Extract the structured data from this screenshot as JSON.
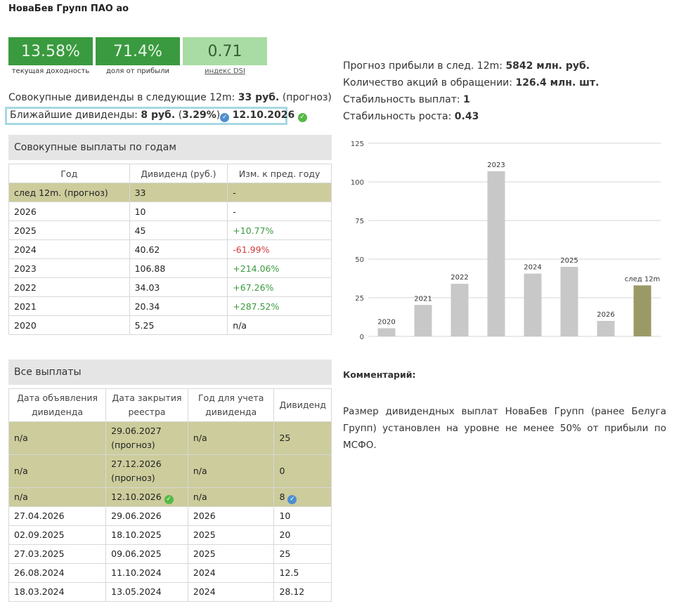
{
  "title": "НоваБев Групп ПАО ао",
  "metrics": [
    {
      "value": "13.58%",
      "label": "текущая доходность"
    },
    {
      "value": "71.4%",
      "label": "доля от прибыли"
    },
    {
      "value": "0.71",
      "label": "индекс DSI"
    }
  ],
  "total_dividends": {
    "prefix": "Совокупные дивиденды в следующие 12m: ",
    "value": "33 руб.",
    "suffix": " (прогноз)"
  },
  "nearest": {
    "prefix": "Ближайшие дивиденды: ",
    "amount": "8 руб.",
    "pct": "3.29%",
    "date": "12.10.2026"
  },
  "info": {
    "forecast_label": "Прогноз прибыли в след. 12m: ",
    "forecast_value": "5842 млн. руб.",
    "shares_label": "Количество акций в обращении: ",
    "shares_value": "126.4 млн. шт.",
    "stability_label": "Стабильность выплат: ",
    "stability_value": "1",
    "growth_label": "Стабильность роста: ",
    "growth_value": "0.43"
  },
  "years_section": "Совокупные выплаты по годам",
  "years_table": {
    "headers": [
      "Год",
      "Дивиденд (руб.)",
      "Изм. к пред. году"
    ],
    "rows": [
      [
        "след 12m. (прогноз)",
        "33",
        "-"
      ],
      [
        "2026",
        "10",
        "-"
      ],
      [
        "2025",
        "45",
        "+10.77%"
      ],
      [
        "2024",
        "40.62",
        "-61.99%"
      ],
      [
        "2023",
        "106.88",
        "+214.06%"
      ],
      [
        "2022",
        "34.03",
        "+67.26%"
      ],
      [
        "2021",
        "20.34",
        "+287.52%"
      ],
      [
        "2020",
        "5.25",
        "n/a"
      ]
    ]
  },
  "payments_section": "Все выплаты",
  "payments_table": {
    "headers": [
      "Дата объявления дивиденда",
      "Дата закрытия реестра",
      "Год для учета дивиденда",
      "Дивиденд"
    ],
    "rows": [
      [
        "n/a",
        "29.06.2027 (прогноз)",
        "n/a",
        "25"
      ],
      [
        "n/a",
        "27.12.2026 (прогноз)",
        "n/a",
        "0"
      ],
      [
        "n/a",
        "12.10.2026",
        "n/a",
        "8"
      ],
      [
        "27.04.2026",
        "29.06.2026",
        "2026",
        "10"
      ],
      [
        "02.09.2025",
        "18.10.2025",
        "2025",
        "20"
      ],
      [
        "27.03.2025",
        "09.06.2025",
        "2025",
        "25"
      ],
      [
        "26.08.2024",
        "11.10.2024",
        "2024",
        "12.5"
      ],
      [
        "18.03.2024",
        "13.05.2024",
        "2024",
        "28.12"
      ]
    ]
  },
  "comment": {
    "title": "Комментарий:",
    "text": "Размер дивидендных выплат НоваБев Групп (ранее Белуга Групп) установлен на уровне не менее 50% от прибыли по МСФО."
  },
  "colors": {
    "bar": "#c8c8c8",
    "bar_forecast": "#9a9a66"
  },
  "chart_data": {
    "type": "bar",
    "categories": [
      "2020",
      "2021",
      "2022",
      "2023",
      "2024",
      "2025",
      "2026",
      "след 12m"
    ],
    "values": [
      5.25,
      20.34,
      34.03,
      106.88,
      40.62,
      45,
      10,
      33
    ],
    "ylim": [
      0,
      125
    ],
    "yticks": [
      0,
      25,
      50,
      75,
      100,
      125
    ],
    "grid": true
  }
}
